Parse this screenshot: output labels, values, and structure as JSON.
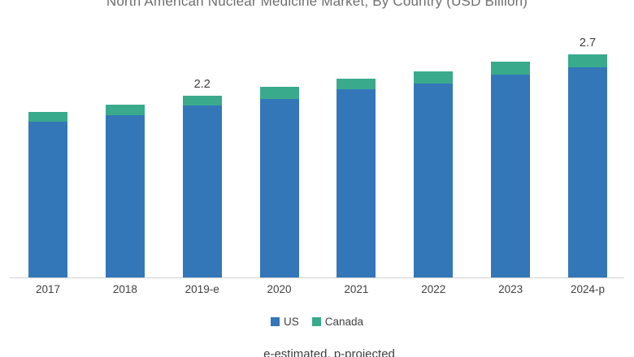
{
  "title": "North American Nuclear Medicine Market, By Country (USD Billion)",
  "footnote": "e-estimated, p-projected",
  "legend": {
    "items": [
      {
        "label": "US",
        "color": "#3377B9"
      },
      {
        "label": "Canada",
        "color": "#3AAA8C"
      }
    ]
  },
  "colors": {
    "us_bar": "#3377B9",
    "canada_bar": "#3AAA8C",
    "axis_line": "#D2D2D2",
    "label_text": "#404040",
    "title_text": "#6E6E6E"
  },
  "chart_data": {
    "type": "bar",
    "stacked": true,
    "title": "North American Nuclear Medicine Market, By Country (USD Billion)",
    "xlabel": "",
    "ylabel": "USD Billion",
    "categories": [
      "2017",
      "2018",
      "2019-e",
      "2020",
      "2021",
      "2022",
      "2023",
      "2024-p"
    ],
    "series": [
      {
        "name": "US",
        "color": "#3377B9",
        "values": [
          1.88,
          1.96,
          2.08,
          2.16,
          2.27,
          2.34,
          2.45,
          2.54
        ]
      },
      {
        "name": "Canada",
        "color": "#3AAA8C",
        "values": [
          0.12,
          0.13,
          0.12,
          0.14,
          0.13,
          0.15,
          0.16,
          0.16
        ]
      }
    ],
    "totals": [
      2.0,
      2.09,
      2.2,
      2.3,
      2.4,
      2.49,
      2.61,
      2.7
    ],
    "total_labels": [
      "",
      "",
      "2.2",
      "",
      "",
      "",
      "",
      "2.7"
    ],
    "ylim": [
      0,
      3
    ],
    "grid": false,
    "legend_position": "bottom",
    "footnote": "e-estimated, p-projected"
  }
}
